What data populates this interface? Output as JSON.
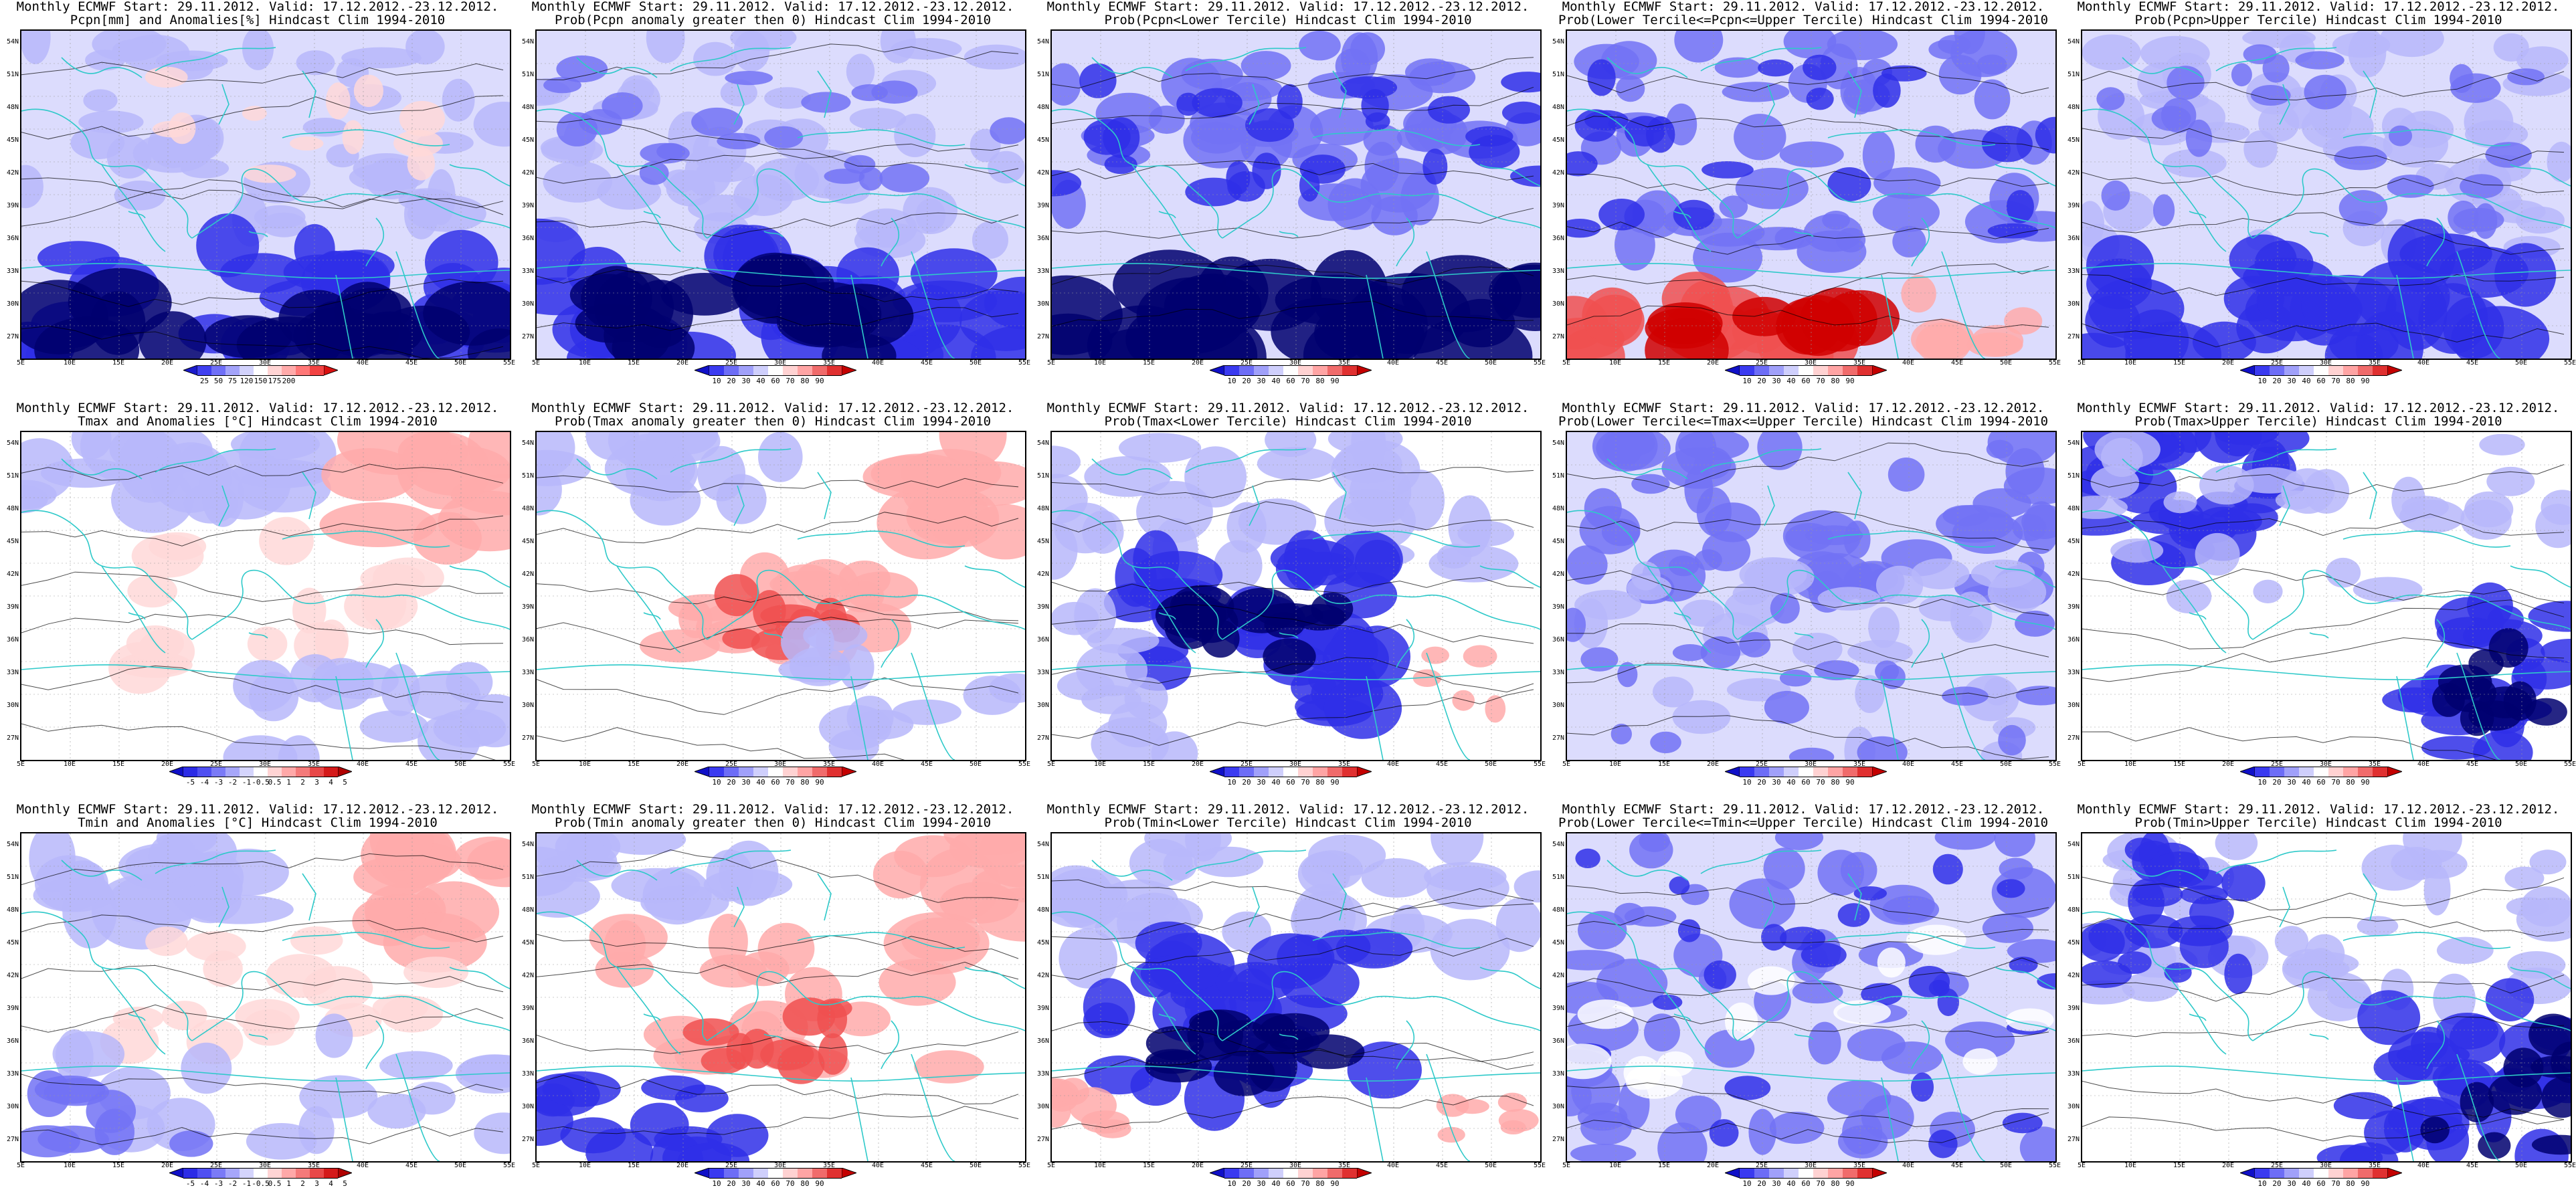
{
  "panels": [
    {
      "title1": "Monthly ECMWF Start: 29.11.2012. Valid: 17.12.2012.-23.12.2012.",
      "title2": "Pcpn[mm] and Anomalies[%] Hindcast Clim 1994-2010",
      "scale": "pcpn_anom",
      "pattern": "pa"
    },
    {
      "title1": "Monthly ECMWF Start: 29.11.2012. Valid: 17.12.2012.-23.12.2012.",
      "title2": "Prob(Pcpn anomaly greater then 0) Hindcast Clim 1994-2010",
      "scale": "prob",
      "pattern": "pp"
    },
    {
      "title1": "Monthly ECMWF Start: 29.11.2012. Valid: 17.12.2012.-23.12.2012.",
      "title2": "Prob(Pcpn<Lower Tercile) Hindcast Clim 1994-2010",
      "scale": "prob",
      "pattern": "pl"
    },
    {
      "title1": "Monthly ECMWF Start: 29.11.2012. Valid: 17.12.2012.-23.12.2012.",
      "title2": "Prob(Lower Tercile<=Pcpn<=Upper Tercile) Hindcast Clim 1994-2010",
      "scale": "prob",
      "pattern": "pm"
    },
    {
      "title1": "Monthly ECMWF Start: 29.11.2012. Valid: 17.12.2012.-23.12.2012.",
      "title2": "Prob(Pcpn>Upper Tercile) Hindcast Clim 1994-2010",
      "scale": "prob",
      "pattern": "pu"
    },
    {
      "title1": "Monthly ECMWF Start: 29.11.2012. Valid: 17.12.2012.-23.12.2012.",
      "title2": "Tmax and Anomalies [°C] Hindcast Clim 1994-2010",
      "scale": "temp_anom",
      "pattern": "ta"
    },
    {
      "title1": "Monthly ECMWF Start: 29.11.2012. Valid: 17.12.2012.-23.12.2012.",
      "title2": "Prob(Tmax anomaly greater then 0) Hindcast Clim 1994-2010",
      "scale": "prob",
      "pattern": "tp"
    },
    {
      "title1": "Monthly ECMWF Start: 29.11.2012. Valid: 17.12.2012.-23.12.2012.",
      "title2": "Prob(Tmax<Lower Tercile) Hindcast Clim 1994-2010",
      "scale": "prob",
      "pattern": "tl"
    },
    {
      "title1": "Monthly ECMWF Start: 29.11.2012. Valid: 17.12.2012.-23.12.2012.",
      "title2": "Prob(Lower Tercile<=Tmax<=Upper Tercile) Hindcast Clim 1994-2010",
      "scale": "prob",
      "pattern": "tm"
    },
    {
      "title1": "Monthly ECMWF Start: 29.11.2012. Valid: 17.12.2012.-23.12.2012.",
      "title2": "Prob(Tmax>Upper Tercile) Hindcast Clim 1994-2010",
      "scale": "prob",
      "pattern": "tu"
    },
    {
      "title1": "Monthly ECMWF Start: 29.11.2012. Valid: 17.12.2012.-23.12.2012.",
      "title2": "Tmin and Anomalies [°C] Hindcast Clim 1994-2010",
      "scale": "temp_anom",
      "pattern": "na"
    },
    {
      "title1": "Monthly ECMWF Start: 29.11.2012. Valid: 17.12.2012.-23.12.2012.",
      "title2": "Prob(Tmin anomaly greater then 0) Hindcast Clim 1994-2010",
      "scale": "prob",
      "pattern": "np"
    },
    {
      "title1": "Monthly ECMWF Start: 29.11.2012. Valid: 17.12.2012.-23.12.2012.",
      "title2": "Prob(Tmin<Lower Tercile) Hindcast Clim 1994-2010",
      "scale": "prob",
      "pattern": "nl"
    },
    {
      "title1": "Monthly ECMWF Start: 29.11.2012. Valid: 17.12.2012.-23.12.2012.",
      "title2": "Prob(Lower Tercile<=Tmin<=Upper Tercile) Hindcast Clim 1994-2010",
      "scale": "prob",
      "pattern": "nm"
    },
    {
      "title1": "Monthly ECMWF Start: 29.11.2012. Valid: 17.12.2012.-23.12.2012.",
      "title2": "Prob(Tmin>Upper Tercile) Hindcast Clim 1994-2010",
      "scale": "prob",
      "pattern": "nu"
    }
  ],
  "axes": {
    "lat_labels": [
      "54N",
      "51N",
      "48N",
      "45N",
      "42N",
      "39N",
      "36N",
      "33N",
      "30N",
      "27N"
    ],
    "lon_labels": [
      "5E",
      "10E",
      "15E",
      "20E",
      "25E",
      "30E",
      "35E",
      "40E",
      "45E",
      "50E",
      "55E"
    ]
  },
  "scales": {
    "pcpn_anom": {
      "labels": [
        "25",
        "50",
        "75",
        "120",
        "150",
        "175",
        "200"
      ],
      "colors": [
        "#1a1acc",
        "#3f3ff0",
        "#6f6ff7",
        "#a3a3fa",
        "#d2d2fc",
        "#ffffff",
        "#ffd4d4",
        "#ffaaaa",
        "#ff7777",
        "#f24242",
        "#d91010"
      ]
    },
    "prob": {
      "labels": [
        "10",
        "20",
        "30",
        "40",
        "60",
        "70",
        "80",
        "90"
      ],
      "colors": [
        "#1010c8",
        "#3a3af0",
        "#6d6df6",
        "#a0a0fa",
        "#cfcffc",
        "#ffffff",
        "#ffd2d2",
        "#ffa4a4",
        "#f06b6b",
        "#e03030",
        "#c40000"
      ]
    },
    "temp_anom": {
      "labels": [
        "-5",
        "-4",
        "-3",
        "-2",
        "-1",
        "-0.5",
        "0.5",
        "1",
        "2",
        "3",
        "4",
        "5"
      ],
      "colors": [
        "#1010c8",
        "#2c2ce6",
        "#5050f2",
        "#7a7af7",
        "#a6a6fa",
        "#d4d4fc",
        "#ffffff",
        "#ffd4d4",
        "#ffa8a8",
        "#f47a7a",
        "#e84848",
        "#d41a1a",
        "#b00000"
      ]
    }
  },
  "palette": {
    "deep_blue": "#00006e",
    "blue": "#2f2fe8",
    "mid_blue": "#7272f5",
    "light_blue": "#b7b7fa",
    "pale_blue": "#dcdcfd",
    "white": "#ffffff",
    "pale_red": "#ffd8d8",
    "light_red": "#ffaaaa",
    "red": "#f05050",
    "deep_red": "#d00000",
    "coast": "#2ec9c9",
    "contour": "#000000"
  }
}
